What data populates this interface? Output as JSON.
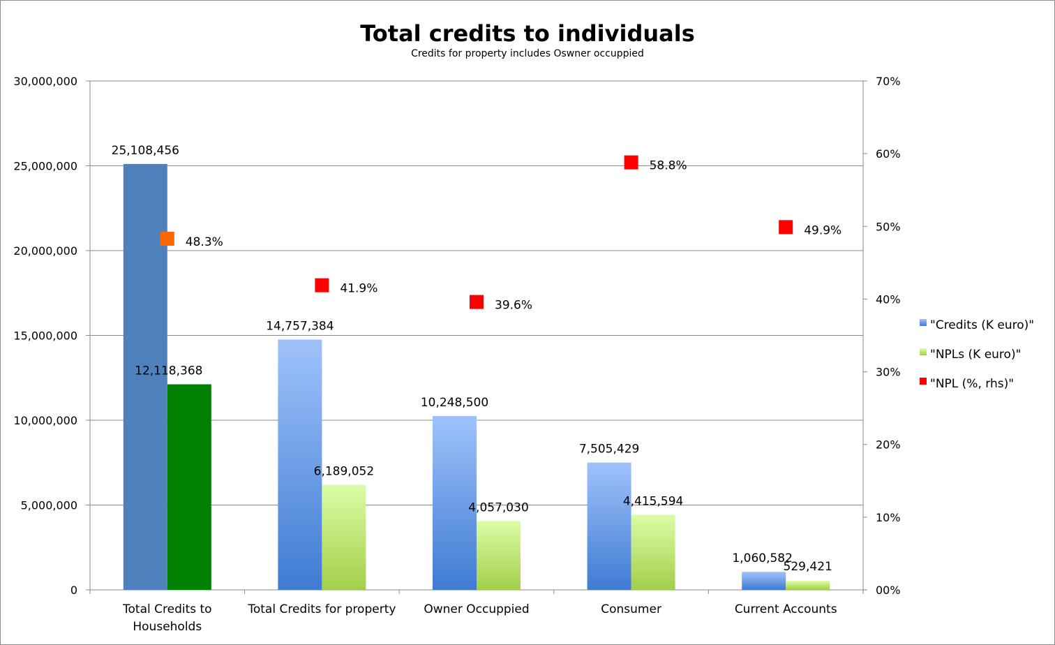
{
  "chart_data": {
    "type": "bar",
    "title": "Total credits to individuals",
    "subtitle": "Credits for property includes Oswner occuppied",
    "categories": [
      [
        "Total Credits to",
        "Households"
      ],
      [
        "Total Credits for property"
      ],
      [
        "Owner Occuppied"
      ],
      [
        "Consumer"
      ],
      [
        "Current Accounts"
      ]
    ],
    "ylim": [
      0,
      30000000
    ],
    "y2lim": [
      0,
      0.7
    ],
    "y_ticks": [
      0,
      5000000,
      10000000,
      15000000,
      20000000,
      25000000,
      30000000
    ],
    "y_tick_labels": [
      "0",
      "5,000,000",
      "10,000,000",
      "15,000,000",
      "20,000,000",
      "25,000,000",
      "30,000,000"
    ],
    "y2_ticks": [
      0,
      0.1,
      0.2,
      0.3,
      0.4,
      0.5,
      0.6,
      0.7
    ],
    "y2_tick_labels": [
      "00%",
      "10%",
      "20%",
      "30%",
      "40%",
      "50%",
      "60%",
      "70%"
    ],
    "grid": true,
    "legend_position": "right",
    "series": [
      {
        "name": "\"Credits (K euro)\"",
        "axis": "left",
        "kind": "bar",
        "values": [
          25108456,
          14757384,
          10248500,
          7505429,
          1060582
        ],
        "labels": [
          "25,108,456",
          "14,757,384",
          "10,248,500",
          "7,505,429",
          "1,060,582"
        ],
        "color": "#4a7fd4",
        "first_color": "#4f81bd"
      },
      {
        "name": "\"NPLs (K euro)\"",
        "axis": "left",
        "kind": "bar",
        "values": [
          12118368,
          6189052,
          4057030,
          4415594,
          529421
        ],
        "labels": [
          "12,118,368",
          "6,189,052",
          "4,057,030",
          "4,415,594",
          "529,421"
        ],
        "color": "#a8d44e",
        "first_color": "#008000"
      },
      {
        "name": "\"NPL (%, rhs)\"",
        "axis": "right",
        "kind": "marker",
        "values": [
          0.483,
          0.419,
          0.396,
          0.588,
          0.499
        ],
        "labels": [
          "48.3%",
          "41.9%",
          "39.6%",
          "58.8%",
          "49.9%"
        ],
        "color": "#ff0000",
        "first_color": "#ff6600"
      }
    ]
  }
}
